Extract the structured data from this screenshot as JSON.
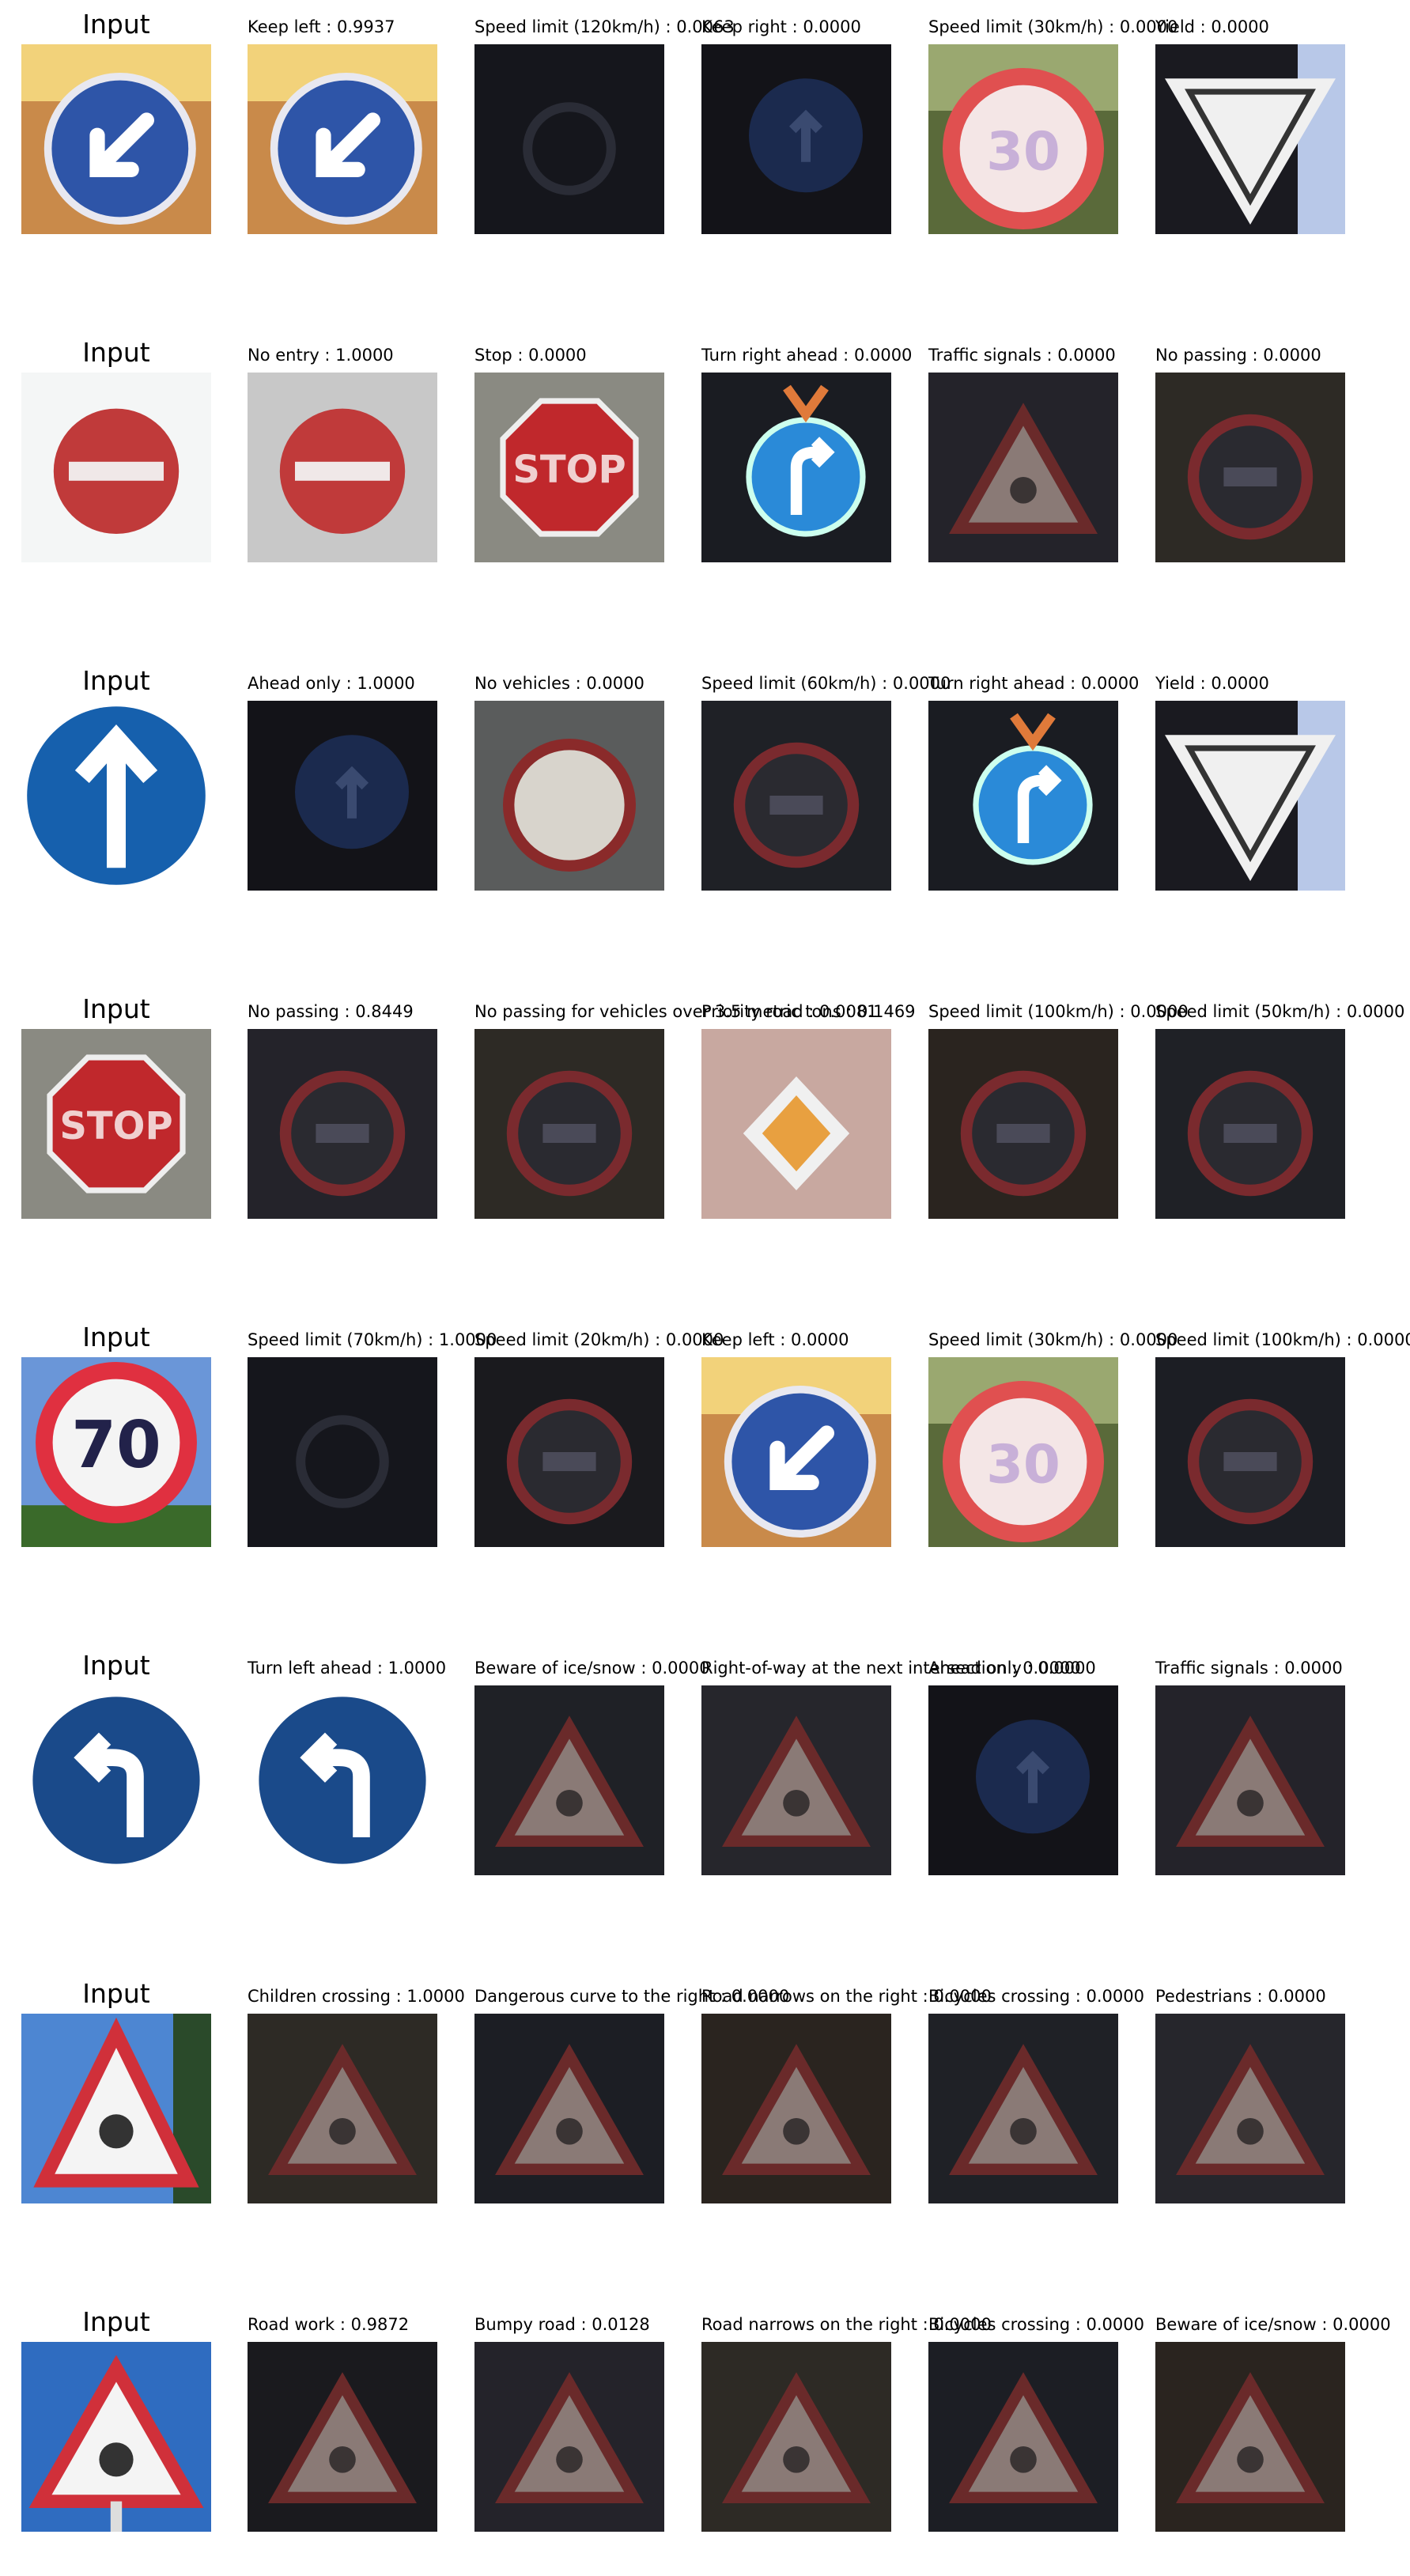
{
  "input_title": "Input",
  "rows": [
    {
      "input_icon": "keep-left-sign",
      "candidates": [
        {
          "label": "Keep left : 0.9937",
          "icon": "keep-left-sign"
        },
        {
          "label": "Speed limit (120km/h) : 0.0063",
          "icon": "dark-round-sign"
        },
        {
          "label": "Keep right : 0.0000",
          "icon": "dark-blue-sign"
        },
        {
          "label": "Speed limit (30km/h) : 0.0000",
          "icon": "speed-limit-sign"
        },
        {
          "label": "Yield : 0.0000",
          "icon": "yield-sign"
        }
      ]
    },
    {
      "input_icon": "no-entry-sign",
      "candidates": [
        {
          "label": "No entry : 1.0000",
          "icon": "no-entry-sign"
        },
        {
          "label": "Stop : 0.0000",
          "icon": "stop-sign"
        },
        {
          "label": "Turn right ahead : 0.0000",
          "icon": "turn-right-sign"
        },
        {
          "label": "Traffic signals : 0.0000",
          "icon": "warning-triangle-sign"
        },
        {
          "label": "No passing : 0.0000",
          "icon": "dark-round-red-sign"
        }
      ]
    },
    {
      "input_icon": "ahead-only-sign",
      "candidates": [
        {
          "label": "Ahead only : 1.0000",
          "icon": "dark-blue-sign"
        },
        {
          "label": "No vehicles : 0.0000",
          "icon": "no-vehicles-sign"
        },
        {
          "label": "Speed limit (60km/h) : 0.0000",
          "icon": "dark-round-red-sign"
        },
        {
          "label": "Turn right ahead : 0.0000",
          "icon": "turn-right-sign"
        },
        {
          "label": "Yield : 0.0000",
          "icon": "yield-sign"
        }
      ]
    },
    {
      "input_icon": "stop-sign",
      "candidates": [
        {
          "label": "No passing : 0.8449",
          "icon": "dark-round-red-sign"
        },
        {
          "label": "No passing for vehicles over 3.5 metric tons : 0.1469",
          "icon": "dark-round-red-sign"
        },
        {
          "label": "Priority road : 0.0081",
          "icon": "priority-road-sign"
        },
        {
          "label": "Speed limit (100km/h) : 0.0000",
          "icon": "dark-round-red-sign"
        },
        {
          "label": "Speed limit (50km/h) : 0.0000",
          "icon": "dark-round-red-sign"
        }
      ]
    },
    {
      "input_icon": "speed-limit-70-sign",
      "candidates": [
        {
          "label": "Speed limit (70km/h) : 1.0000",
          "icon": "dark-round-sign"
        },
        {
          "label": "Speed limit (20km/h) : 0.0000",
          "icon": "dark-round-red-sign"
        },
        {
          "label": "Keep left : 0.0000",
          "icon": "keep-left-sign"
        },
        {
          "label": "Speed limit (30km/h) : 0.0000",
          "icon": "speed-limit-sign"
        },
        {
          "label": "Speed limit (100km/h) : 0.0000",
          "icon": "dark-round-red-sign"
        }
      ]
    },
    {
      "input_icon": "turn-left-sign",
      "candidates": [
        {
          "label": "Turn left ahead : 1.0000",
          "icon": "turn-left-sign"
        },
        {
          "label": "Beware of ice/snow : 0.0000",
          "icon": "warning-triangle-sign"
        },
        {
          "label": "Right-of-way at the next intersection : 0.0000",
          "icon": "warning-triangle-sign"
        },
        {
          "label": "Ahead only : 0.0000",
          "icon": "dark-blue-sign"
        },
        {
          "label": "Traffic signals : 0.0000",
          "icon": "warning-triangle-sign"
        }
      ]
    },
    {
      "input_icon": "children-crossing-sign",
      "candidates": [
        {
          "label": "Children crossing : 1.0000",
          "icon": "warning-triangle-sign"
        },
        {
          "label": "Dangerous curve to the right : 0.0000",
          "icon": "warning-triangle-sign"
        },
        {
          "label": "Road narrows on the right : 0.0000",
          "icon": "warning-triangle-sign"
        },
        {
          "label": "Bicycles crossing : 0.0000",
          "icon": "warning-triangle-sign"
        },
        {
          "label": "Pedestrians : 0.0000",
          "icon": "warning-triangle-sign"
        }
      ]
    },
    {
      "input_icon": "road-work-sign",
      "candidates": [
        {
          "label": "Road work : 0.9872",
          "icon": "warning-triangle-sign"
        },
        {
          "label": "Bumpy road : 0.0128",
          "icon": "warning-triangle-sign"
        },
        {
          "label": "Road narrows on the right : 0.0000",
          "icon": "warning-triangle-sign"
        },
        {
          "label": "Bicycles crossing : 0.0000",
          "icon": "warning-triangle-sign"
        },
        {
          "label": "Beware of ice/snow : 0.0000",
          "icon": "warning-triangle-sign"
        }
      ]
    }
  ]
}
